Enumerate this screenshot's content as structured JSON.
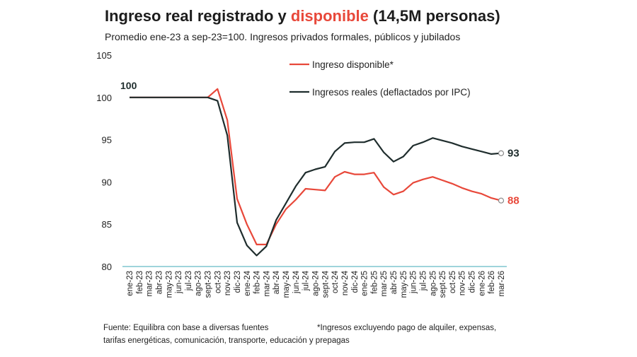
{
  "title": {
    "prefix": "Ingreso real registrado y ",
    "highlight": "disponible",
    "suffix": " (14,5M personas)"
  },
  "subtitle": "Promedio ene-23 a sep-23=100. Ingresos privados formales, públicos y jubilados",
  "footer": {
    "source_line1": "Fuente: Equilibra con base a diversas fuentes",
    "source_line2": "tarifas energéticas, comunicación, transporte, educación y prepagas",
    "note": "*Ingresos excluyendo pago de alquiler, expensas,"
  },
  "colors": {
    "disponible": "#e8483a",
    "reales": "#1f2d2d",
    "axis": "#7fc6cf",
    "text": "#1a1a1a"
  },
  "chart_data": {
    "type": "line",
    "title": "Ingreso real registrado y disponible (14,5M personas)",
    "ylim": [
      80,
      105
    ],
    "yticks": [
      80,
      85,
      90,
      95,
      100,
      105
    ],
    "grid": false,
    "legend_position": "top-right",
    "x": [
      "ene-23",
      "feb-23",
      "mar-23",
      "abr-23",
      "may-23",
      "jun-23",
      "jul-23",
      "ago-23",
      "sept-23",
      "oct-23",
      "nov-23",
      "dic-23",
      "ene-24",
      "feb-24",
      "mar-24",
      "abr-24",
      "may-24",
      "jun-24",
      "jul-24",
      "ago-24",
      "sept-24",
      "oct-24",
      "nov-24",
      "dic-24",
      "ene-25",
      "feb-25",
      "mar-25",
      "abr-25",
      "may-25",
      "jun-25",
      "jul-25",
      "ago-25",
      "sept-25",
      "oct-25",
      "nov-25",
      "dic-25",
      "ene-26",
      "feb-26",
      "mar-26"
    ],
    "series": [
      {
        "name": "Ingreso disponible*",
        "color": "#e8483a",
        "values": [
          100,
          100,
          100,
          100,
          100,
          100,
          100,
          100,
          100,
          101,
          97.3,
          88.0,
          85.0,
          82.6,
          82.6,
          85.0,
          86.8,
          87.9,
          89.2,
          89.1,
          89.0,
          90.6,
          91.2,
          90.9,
          90.9,
          91.1,
          89.4,
          88.5,
          88.9,
          89.9,
          90.3,
          90.6,
          90.2,
          89.8,
          89.3,
          88.9,
          88.6,
          88.1,
          87.8
        ],
        "end_label": "88"
      },
      {
        "name": "Ingresos reales (deflactados por IPC)",
        "color": "#1f2d2d",
        "values": [
          100,
          100,
          100,
          100,
          100,
          100,
          100,
          100,
          100,
          99.6,
          95.5,
          85.2,
          82.5,
          81.3,
          82.4,
          85.5,
          87.5,
          89.5,
          91.1,
          91.5,
          91.8,
          93.6,
          94.6,
          94.7,
          94.7,
          95.1,
          93.5,
          92.4,
          93.0,
          94.3,
          94.7,
          95.2,
          94.9,
          94.6,
          94.2,
          93.9,
          93.6,
          93.3,
          93.4
        ],
        "start_label": "100",
        "end_label": "93"
      }
    ]
  }
}
